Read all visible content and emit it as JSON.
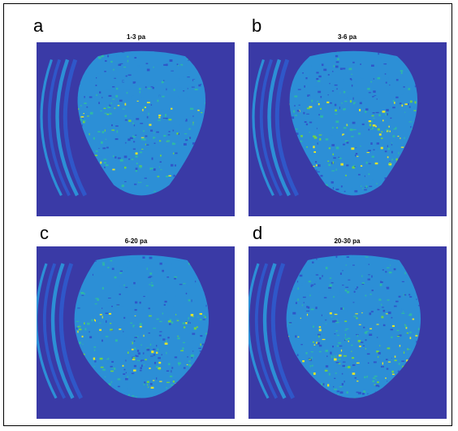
{
  "colors": {
    "background": "#3a3aa6",
    "deep": "#2f57c9",
    "mid": "#2c8fd6",
    "teal": "#2fb7a6",
    "green": "#6fd04a",
    "yellow": "#e4e42a"
  },
  "panels": [
    {
      "letter": "a",
      "title": "1-3 pa"
    },
    {
      "letter": "b",
      "title": "3-6 pa"
    },
    {
      "letter": "c",
      "title": "6-20 pa"
    },
    {
      "letter": "d",
      "title": "20-30 pa"
    }
  ]
}
